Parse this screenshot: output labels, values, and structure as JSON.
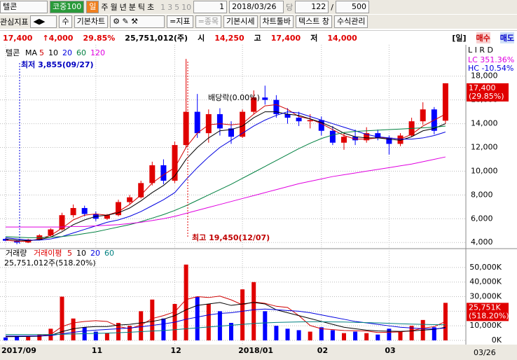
{
  "toolbar": {
    "code": "텔콘",
    "market": "코중100",
    "periods": [
      "일",
      "주",
      "월",
      "년",
      "분",
      "틱",
      "초"
    ],
    "units": [
      "1",
      "3",
      "5",
      "10"
    ],
    "unit_value": "1",
    "date": "2018/03/26",
    "dang": "당",
    "count": "122",
    "slash": "/",
    "total": "500"
  },
  "toolbar2": {
    "items": [
      "관심지표",
      "수",
      "기본차트",
      "=지표",
      "=종목",
      "기본시세",
      "차트툴바",
      "텍스트 창",
      "수식관리"
    ]
  },
  "quote": {
    "price": "17,400",
    "change": "↑4,000",
    "rate": "29.85%",
    "volume": "25,751,012(주)",
    "open_label": "시",
    "open": "14,250",
    "high_label": "고",
    "high": "17,400",
    "low_label": "저",
    "low": "14,000",
    "period": "[일]",
    "buy": "매수",
    "sell": "매도"
  },
  "chart_data": [
    {
      "type": "candlestick",
      "title": "텔콘",
      "ma_label": "MA",
      "corner_label": "L I R D",
      "up_color": "#e00000",
      "down_color": "#0000ff",
      "open": [
        4300,
        4150,
        4000,
        4250,
        4600,
        5100,
        6300,
        6900,
        6400,
        6000,
        6300,
        7400,
        7800,
        9000,
        10500,
        9200,
        12200,
        15000,
        13200,
        14800,
        13600,
        12900,
        15000,
        16200,
        16000,
        14800,
        14500,
        14200,
        14300,
        13400,
        12400,
        12900,
        12600,
        13200,
        12800,
        12300,
        13000,
        14200,
        15200,
        14250
      ],
      "high": [
        4400,
        4200,
        4300,
        4700,
        5200,
        6500,
        7200,
        7100,
        6600,
        6400,
        7600,
        8000,
        9200,
        10800,
        11000,
        12500,
        19450,
        16500,
        15200,
        15300,
        14200,
        15200,
        16800,
        17200,
        16400,
        15300,
        15000,
        14800,
        14600,
        13800,
        13300,
        13500,
        13700,
        13500,
        13000,
        13200,
        14500,
        15800,
        15400,
        17400
      ],
      "low": [
        4100,
        3855,
        3950,
        4200,
        4500,
        5000,
        6100,
        6200,
        5800,
        5900,
        6200,
        7200,
        7700,
        8800,
        8900,
        9000,
        12000,
        12800,
        12400,
        13000,
        12300,
        12800,
        14800,
        15600,
        14500,
        14000,
        13800,
        13600,
        13000,
        12200,
        11800,
        12200,
        12400,
        12600,
        11400,
        12100,
        12900,
        13900,
        13100,
        14000
      ],
      "close": [
        4150,
        4000,
        4250,
        4600,
        5100,
        6300,
        6900,
        6400,
        6000,
        6300,
        7400,
        7800,
        9000,
        10500,
        9200,
        12200,
        15000,
        13200,
        14800,
        13600,
        12900,
        15000,
        16200,
        16000,
        14800,
        14500,
        14200,
        14300,
        13400,
        12400,
        12900,
        12600,
        13200,
        12800,
        12300,
        13000,
        14200,
        15200,
        13400,
        17400
      ],
      "series": [
        {
          "name": "5",
          "color": "#d00000",
          "values": [
            4200,
            4100,
            4100,
            4300,
            4600,
            5200,
            5900,
            6300,
            6400,
            6300,
            6600,
            7200,
            8000,
            9000,
            9700,
            10300,
            12000,
            13200,
            13900,
            14000,
            13900,
            14000,
            14800,
            15500,
            15600,
            15200,
            14600,
            14400,
            14000,
            13500,
            13000,
            12700,
            12700,
            12800,
            12800,
            12700,
            13100,
            13800,
            14300,
            14800
          ]
        },
        {
          "name": "10",
          "color": "#000000",
          "values": [
            4300,
            4200,
            4150,
            4250,
            4450,
            4900,
            5500,
            5900,
            6200,
            6300,
            6500,
            6900,
            7500,
            8200,
            8800,
            9600,
            11000,
            12000,
            12800,
            13400,
            13500,
            13800,
            14500,
            15000,
            15000,
            14800,
            14700,
            14400,
            14100,
            13700,
            13200,
            12900,
            12800,
            12800,
            12700,
            12600,
            12900,
            13400,
            13600,
            14000
          ]
        },
        {
          "name": "20",
          "color": "#0000e0",
          "values": [
            4400,
            4300,
            4200,
            4200,
            4300,
            4500,
            4800,
            5100,
            5400,
            5700,
            5900,
            6200,
            6600,
            7100,
            7600,
            8200,
            9300,
            10300,
            11200,
            12000,
            12600,
            13200,
            13800,
            14300,
            14700,
            15000,
            14900,
            14600,
            14300,
            14000,
            13700,
            13400,
            13100,
            12900,
            12800,
            12700,
            12700,
            12800,
            13000,
            13300
          ]
        },
        {
          "name": "60",
          "color": "#008040",
          "values": [
            4500,
            4450,
            4400,
            4400,
            4450,
            4500,
            4600,
            4750,
            4900,
            5100,
            5300,
            5500,
            5750,
            6050,
            6350,
            6700,
            7100,
            7550,
            8000,
            8450,
            8900,
            9400,
            9900,
            10400,
            10900,
            11400,
            11900,
            12350,
            12750,
            13050,
            13250,
            13350,
            13400,
            13450,
            13500,
            13550,
            13600,
            13650,
            13700,
            13800
          ]
        },
        {
          "name": "120",
          "color": "#e000e0",
          "values": [
            5300,
            5300,
            5300,
            5300,
            5300,
            5300,
            5350,
            5350,
            5400,
            5450,
            5500,
            5600,
            5700,
            5850,
            6000,
            6200,
            6450,
            6700,
            6950,
            7200,
            7450,
            7700,
            7950,
            8200,
            8450,
            8700,
            8950,
            9150,
            9350,
            9550,
            9700,
            9850,
            10000,
            10150,
            10300,
            10450,
            10600,
            10800,
            11000,
            11200
          ]
        }
      ],
      "ylim": [
        3600,
        20400
      ],
      "yticks": [
        {
          "value": 18000,
          "label": "18,000"
        },
        {
          "value": 16000,
          "label": "16,000"
        },
        {
          "value": 14000,
          "label": "14,000"
        },
        {
          "value": 12000,
          "label": "12,000"
        },
        {
          "value": 10000,
          "label": "10,000"
        },
        {
          "value": 8000,
          "label": "8,000"
        },
        {
          "value": 6000,
          "label": "6,000"
        },
        {
          "value": 4000,
          "label": "4,000"
        }
      ],
      "grid": true,
      "annotations": [
        "최저 3,855(09/27)",
        "배당락(0.00%)",
        "최고 19,450(12/07)"
      ],
      "lc_label": "LC 351.36%",
      "hc_label": "HC -10.54%",
      "last_label": "17,400",
      "last_change_label": "(29.85%)"
    },
    {
      "type": "bar",
      "title": "거래량",
      "ma_label": "거래이평",
      "info": "25,751,012주(518.20%)",
      "categories": [
        "2017/09",
        null,
        null,
        null,
        null,
        null,
        null,
        null,
        "11",
        null,
        null,
        null,
        null,
        null,
        null,
        "12",
        null,
        null,
        null,
        null,
        null,
        "2018/01",
        null,
        null,
        null,
        null,
        null,
        null,
        "02",
        null,
        null,
        null,
        null,
        null,
        "03",
        null,
        null,
        null,
        null,
        null
      ],
      "end_label": "03/26",
      "values": [
        2000,
        3000,
        2500,
        4000,
        8000,
        30000,
        15000,
        9000,
        6000,
        5000,
        12000,
        10000,
        20000,
        28000,
        15000,
        25000,
        52000,
        30000,
        25000,
        20000,
        12000,
        35000,
        40000,
        20000,
        10000,
        8000,
        7000,
        6000,
        9000,
        7000,
        5000,
        6000,
        5000,
        4000,
        8000,
        6000,
        10000,
        14000,
        9000,
        25751
      ],
      "series": [
        {
          "name": "5",
          "color": "#d00000",
          "values": [
            2500,
            2800,
            3000,
            3200,
            4000,
            9500,
            12000,
            13000,
            13500,
            13000,
            9500,
            8000,
            10500,
            15000,
            17000,
            19600,
            28000,
            30000,
            29400,
            30400,
            27800,
            24400,
            26400,
            25400,
            23400,
            22600,
            17000,
            10200,
            8000,
            7400,
            6800,
            6600,
            6400,
            5400,
            5600,
            5800,
            6600,
            8400,
            9400,
            12950
          ]
        },
        {
          "name": "10",
          "color": "#000000",
          "values": [
            2500,
            2600,
            2700,
            2900,
            3500,
            6000,
            8000,
            9000,
            9500,
            9500,
            10500,
            11000,
            12000,
            13000,
            14500,
            17000,
            21000,
            24000,
            25000,
            26000,
            24000,
            25000,
            26000,
            25000,
            21000,
            19000,
            17000,
            15000,
            13000,
            11000,
            9000,
            8000,
            7000,
            6500,
            6300,
            6200,
            6500,
            7000,
            7500,
            9000
          ]
        },
        {
          "name": "20",
          "color": "#0000e0",
          "values": [
            3000,
            3000,
            3000,
            3100,
            3300,
            4500,
            5500,
            6500,
            7000,
            7500,
            8000,
            8500,
            9300,
            10300,
            11300,
            12500,
            14500,
            16000,
            17500,
            18500,
            19000,
            20000,
            21000,
            21500,
            21000,
            20500,
            20000,
            19000,
            17500,
            16000,
            14500,
            13000,
            12000,
            11000,
            10000,
            9000,
            8500,
            8000,
            7800,
            8500
          ]
        },
        {
          "name": "60",
          "color": "#008080",
          "values": [
            4000,
            4000,
            4000,
            4000,
            4000,
            4200,
            4400,
            4600,
            4800,
            5000,
            5300,
            5600,
            6000,
            6400,
            6800,
            7300,
            8000,
            8600,
            9200,
            9800,
            10400,
            11000,
            11600,
            12000,
            12300,
            12500,
            12700,
            12800,
            12800,
            12700,
            12600,
            12400,
            12200,
            12000,
            11700,
            11400,
            11200,
            11000,
            10800,
            10700
          ]
        }
      ],
      "ylim": [
        0,
        61500
      ],
      "yticks": [
        {
          "value": 50000,
          "label": "50,000K"
        },
        {
          "value": 40000,
          "label": "40,000K"
        },
        {
          "value": 30000,
          "label": "30,000K"
        },
        {
          "value": 20000,
          "label": "20,000K"
        },
        {
          "value": 10000,
          "label": "10,000K"
        },
        {
          "value": 0,
          "label": "0K"
        }
      ],
      "grid": true,
      "last_label": "25,751K",
      "last_change_label": "(518.20%)"
    }
  ]
}
